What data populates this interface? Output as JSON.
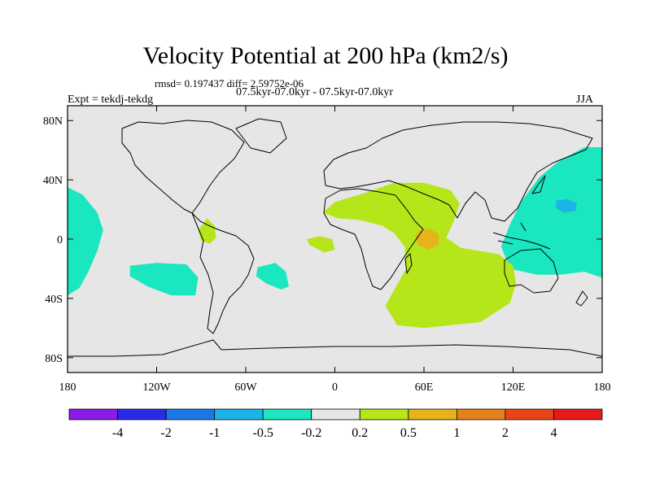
{
  "chart_data": {
    "type": "heatmap",
    "title": "Velocity Potential at 200 hPa (km2/s)",
    "stats_line": "rmsd= 0.197437 diff= 2.59752e-06",
    "subtitle": "07.5kyr-07.0kyr - 07.5kyr-07.0kyr",
    "left_label": "Expt = tekdj-tekdg",
    "right_label": "JJA",
    "x_ticks": [
      {
        "lon": -180,
        "label": "180"
      },
      {
        "lon": -120,
        "label": "120W"
      },
      {
        "lon": -60,
        "label": "60W"
      },
      {
        "lon": 0,
        "label": "0"
      },
      {
        "lon": 60,
        "label": "60E"
      },
      {
        "lon": 120,
        "label": "120E"
      },
      {
        "lon": 180,
        "label": "180"
      }
    ],
    "y_ticks": [
      {
        "lat": 80,
        "label": "80N"
      },
      {
        "lat": 40,
        "label": "40N"
      },
      {
        "lat": 0,
        "label": "0"
      },
      {
        "lat": -40,
        "label": "40S"
      },
      {
        "lat": -80,
        "label": "80S"
      }
    ],
    "lon_range": [
      -180,
      180
    ],
    "lat_range": [
      -90,
      90
    ],
    "colorbar": {
      "colors": [
        "#8a1ae6",
        "#2a2ae6",
        "#1a78e6",
        "#1ab4e6",
        "#1ae6c0",
        "#e6e6e6",
        "#b4e61a",
        "#e6b41a",
        "#e6801a",
        "#e6461a",
        "#e61a1a"
      ],
      "labels": [
        "-4",
        "-2",
        "-1",
        "-0.5",
        "-0.2",
        "0.2",
        "0.5",
        "1",
        "2",
        "4"
      ]
    },
    "regions": [
      {
        "name": "east-pacific-negative",
        "level": "-0.2",
        "color": "#1ae6c0",
        "polygon": [
          [
            -180,
            35
          ],
          [
            -170,
            30
          ],
          [
            -160,
            18
          ],
          [
            -156,
            6
          ],
          [
            -160,
            -8
          ],
          [
            -166,
            -22
          ],
          [
            -172,
            -33
          ],
          [
            -180,
            -38
          ]
        ]
      },
      {
        "name": "south-pacific-negative",
        "level": "-0.2",
        "color": "#1ae6c0",
        "polygon": [
          [
            -138,
            -18
          ],
          [
            -120,
            -16
          ],
          [
            -100,
            -17
          ],
          [
            -92,
            -26
          ],
          [
            -94,
            -38
          ],
          [
            -110,
            -38
          ],
          [
            -126,
            -32
          ],
          [
            -138,
            -25
          ]
        ]
      },
      {
        "name": "south-atlantic-negative",
        "level": "-0.2",
        "color": "#1ae6c0",
        "polygon": [
          [
            -52,
            -19
          ],
          [
            -40,
            -16
          ],
          [
            -33,
            -22
          ],
          [
            -31,
            -32
          ],
          [
            -36,
            -34
          ],
          [
            -46,
            -30
          ],
          [
            -53,
            -25
          ]
        ]
      },
      {
        "name": "west-pacific-negative",
        "level": "-0.2",
        "color": "#1ae6c0",
        "polygon": [
          [
            180,
            62
          ],
          [
            168,
            62
          ],
          [
            150,
            52
          ],
          [
            138,
            42
          ],
          [
            126,
            26
          ],
          [
            118,
            10
          ],
          [
            112,
            -5
          ],
          [
            118,
            -20
          ],
          [
            136,
            -24
          ],
          [
            152,
            -24
          ],
          [
            168,
            -22
          ],
          [
            180,
            -26
          ]
        ]
      },
      {
        "name": "west-pacific-core",
        "level": "-0.5",
        "color": "#1ab4e6",
        "polygon": [
          [
            149,
            26
          ],
          [
            157,
            27
          ],
          [
            163,
            24
          ],
          [
            162,
            19
          ],
          [
            154,
            18
          ],
          [
            149,
            21
          ]
        ]
      },
      {
        "name": "central-america-positive",
        "level": "0.2",
        "color": "#b4e61a",
        "polygon": [
          [
            -92,
            6
          ],
          [
            -86,
            14
          ],
          [
            -81,
            9
          ],
          [
            -80,
            1
          ],
          [
            -84,
            -3
          ],
          [
            -90,
            -1
          ]
        ]
      },
      {
        "name": "gulf-of-guinea-positive",
        "level": "0.2",
        "color": "#b4e61a",
        "polygon": [
          [
            -19,
            0
          ],
          [
            -10,
            2
          ],
          [
            -2,
            0
          ],
          [
            0,
            -7
          ],
          [
            -7,
            -9
          ],
          [
            -17,
            -4
          ]
        ]
      },
      {
        "name": "africa-indian-ocean-positive",
        "level": "0.2",
        "color": "#b4e61a",
        "polygon": [
          [
            -8,
            18
          ],
          [
            0,
            25
          ],
          [
            20,
            31
          ],
          [
            40,
            38
          ],
          [
            60,
            38
          ],
          [
            78,
            33
          ],
          [
            84,
            24
          ],
          [
            80,
            12
          ],
          [
            75,
            1
          ],
          [
            85,
            -6
          ],
          [
            110,
            -10
          ],
          [
            120,
            -18
          ],
          [
            122,
            -30
          ],
          [
            118,
            -43
          ],
          [
            98,
            -56
          ],
          [
            60,
            -60
          ],
          [
            42,
            -58
          ],
          [
            34,
            -45
          ],
          [
            40,
            -34
          ],
          [
            48,
            -20
          ],
          [
            47,
            -5
          ],
          [
            40,
            4
          ],
          [
            32,
            9
          ],
          [
            16,
            13
          ],
          [
            2,
            14
          ]
        ]
      },
      {
        "name": "arabian-sea-core",
        "level": "0.5",
        "color": "#e6b41a",
        "polygon": [
          [
            57,
            6
          ],
          [
            64,
            7
          ],
          [
            70,
            3
          ],
          [
            70,
            -4
          ],
          [
            63,
            -7
          ],
          [
            56,
            -4
          ],
          [
            54,
            2
          ]
        ]
      }
    ]
  }
}
